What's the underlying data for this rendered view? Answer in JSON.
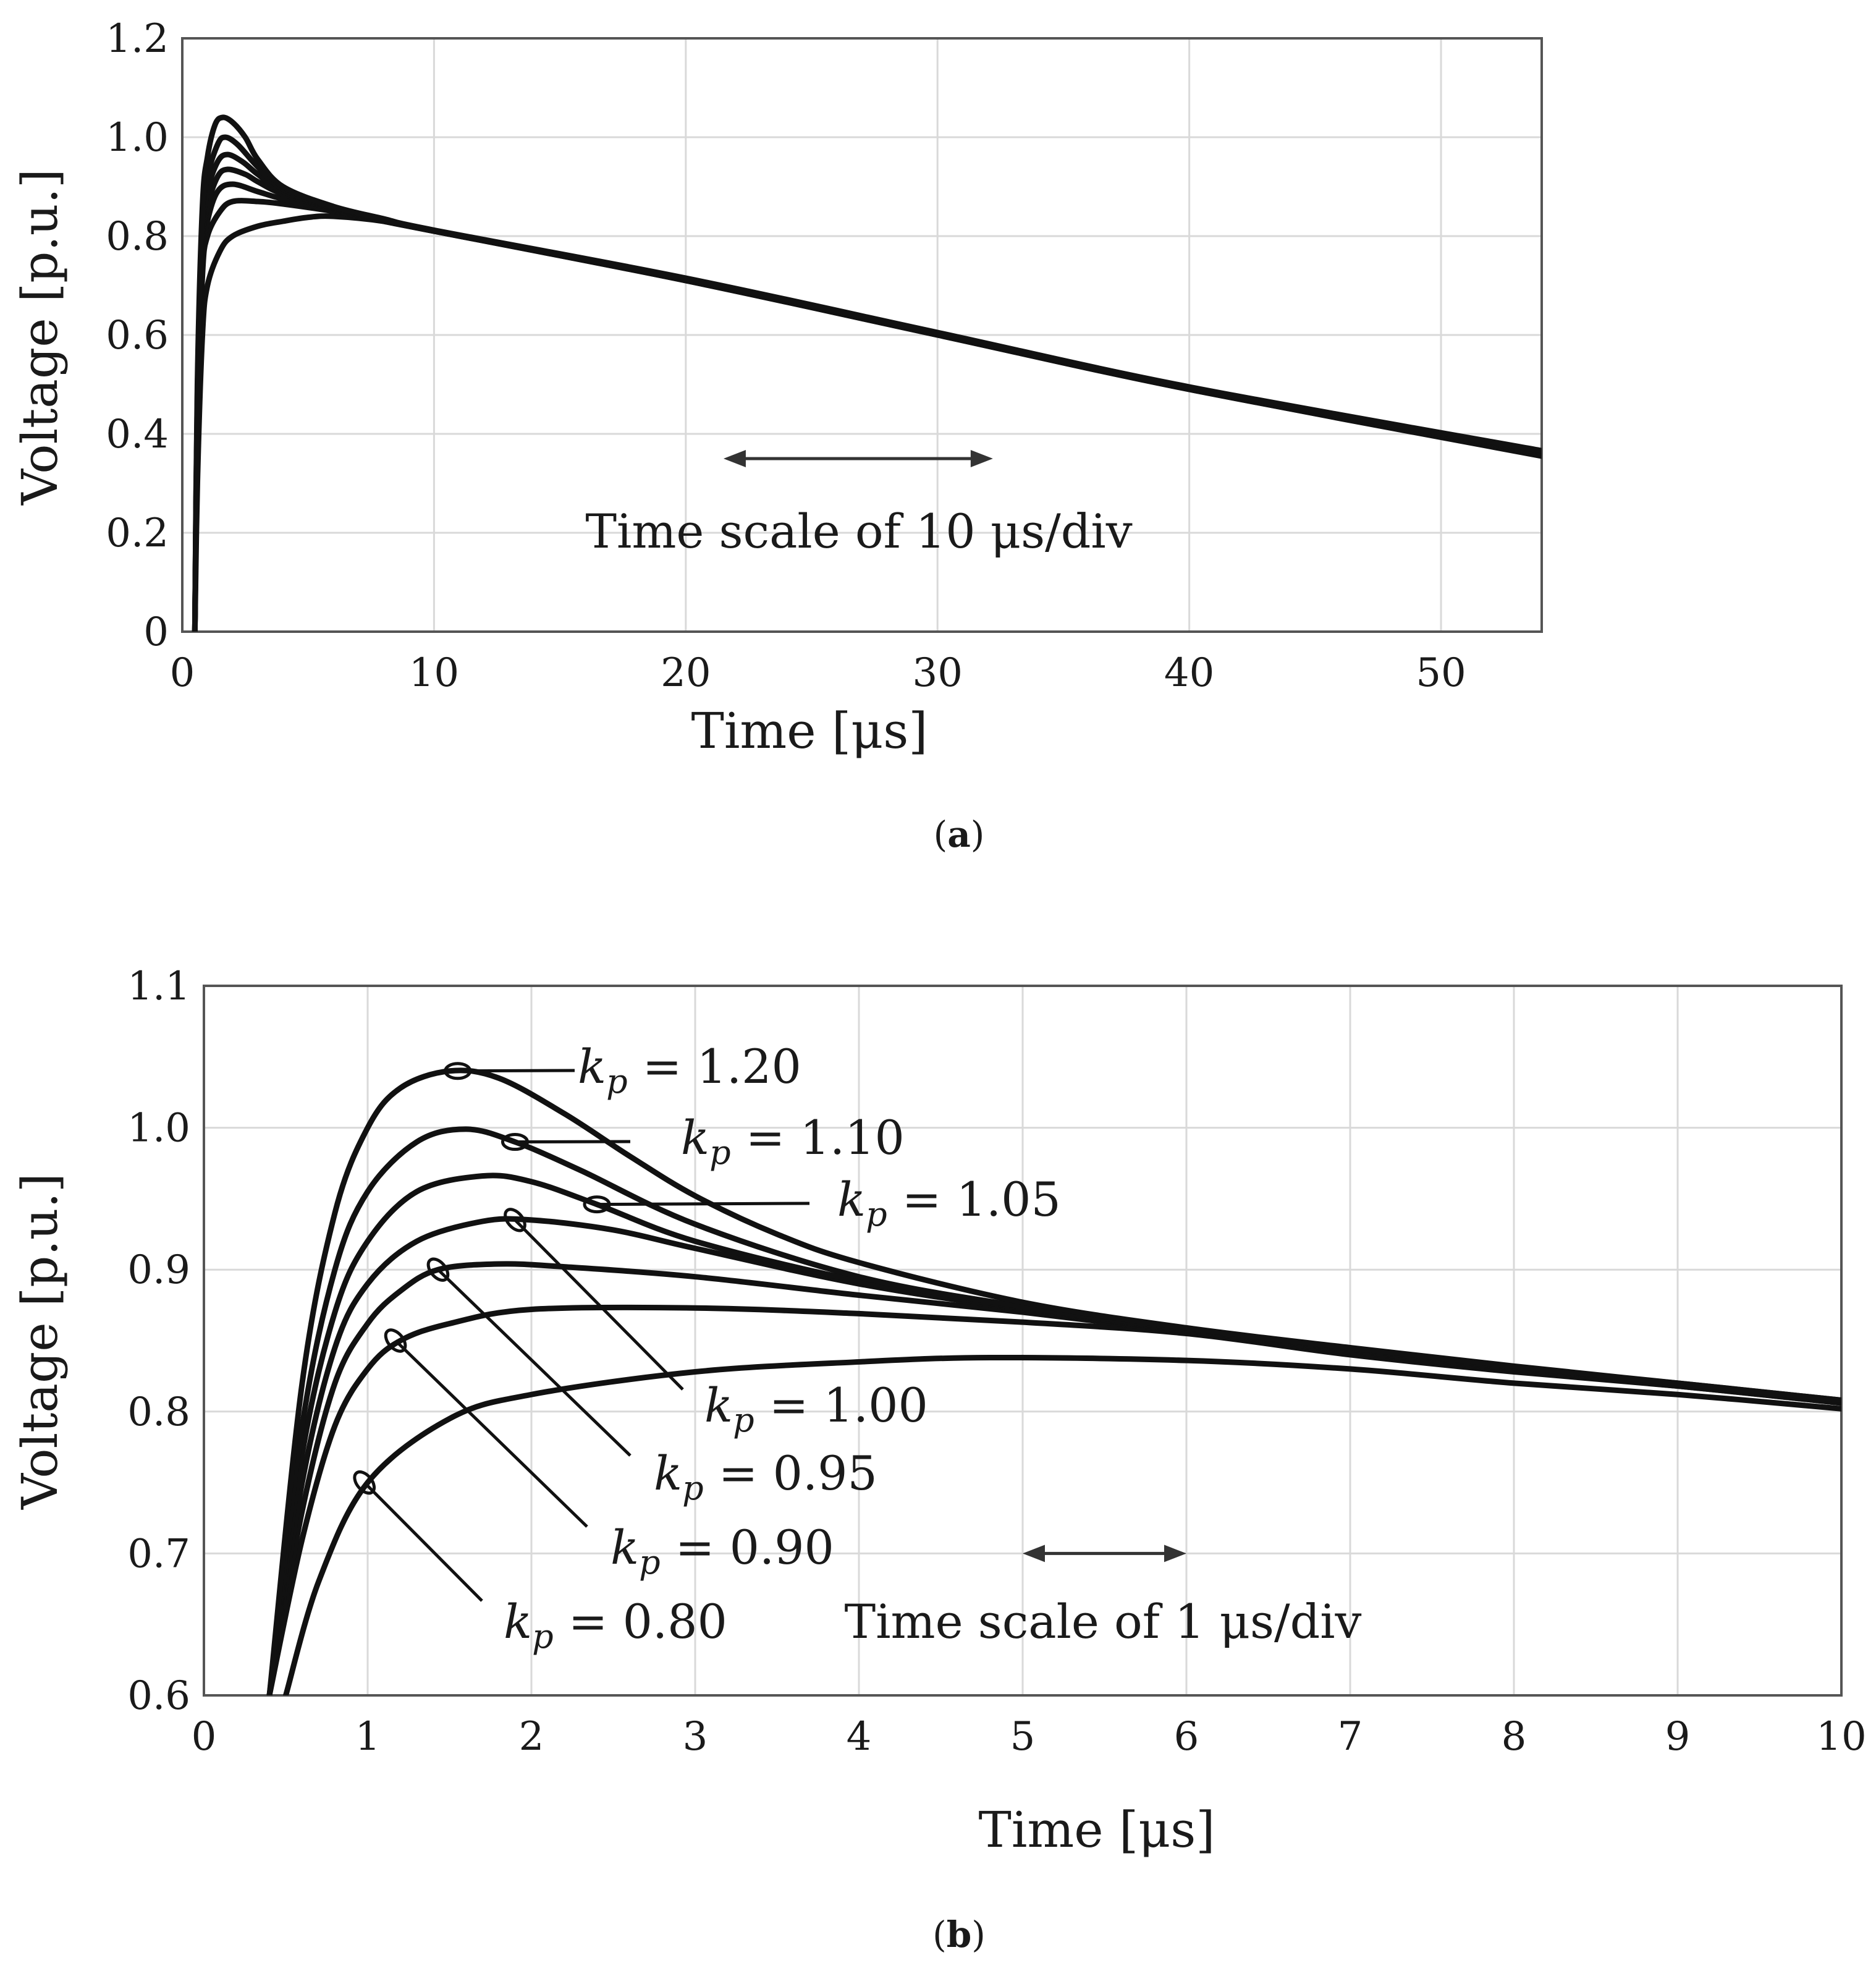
{
  "chart_data": [
    {
      "id": "a",
      "type": "line",
      "caption_label": "a",
      "xlabel": "Time [μs]",
      "ylabel": "Voltage [p.u.]",
      "xlim": [
        0,
        54
      ],
      "ylim": [
        0,
        1.2
      ],
      "xticks": [
        "0",
        "10",
        "20",
        "30",
        "40",
        "50"
      ],
      "xtick_values": [
        0,
        10,
        20,
        30,
        40,
        50
      ],
      "yticks": [
        "0",
        "0.2",
        "0.4",
        "0.6",
        "0.8",
        "1.0",
        "1.2"
      ],
      "ytick_values": [
        0,
        0.2,
        0.4,
        0.6,
        0.8,
        1.0,
        1.2
      ],
      "grid": true,
      "scale_annotation": {
        "text": "Time scale of 10 μs/div",
        "x_from": 21.5,
        "x_to": 32.2,
        "y": 0.35
      },
      "series": [
        {
          "name": "kp = 0.80",
          "kp": 0.8,
          "points": [
            [
              0.5,
              0
            ],
            [
              0.6,
              0.3
            ],
            [
              0.8,
              0.6
            ],
            [
              1,
              0.7
            ],
            [
              1.5,
              0.77
            ],
            [
              2,
              0.8
            ],
            [
              3,
              0.82
            ],
            [
              4,
              0.83
            ],
            [
              5,
              0.838
            ],
            [
              6,
              0.84
            ],
            [
              8,
              0.83
            ],
            [
              10,
              0.81
            ],
            [
              20,
              0.71
            ],
            [
              30,
              0.6
            ],
            [
              40,
              0.49
            ],
            [
              54,
              0.355
            ]
          ]
        },
        {
          "name": "kp = 0.90",
          "kp": 0.9,
          "points": [
            [
              0.5,
              0
            ],
            [
              0.6,
              0.4
            ],
            [
              0.8,
              0.72
            ],
            [
              1,
              0.8
            ],
            [
              1.5,
              0.85
            ],
            [
              2,
              0.87
            ],
            [
              3,
              0.87
            ],
            [
              4,
              0.865
            ],
            [
              6,
              0.85
            ],
            [
              8,
              0.83
            ],
            [
              10,
              0.81
            ],
            [
              20,
              0.71
            ],
            [
              30,
              0.6
            ],
            [
              40,
              0.49
            ],
            [
              54,
              0.356
            ]
          ]
        },
        {
          "name": "kp = 0.95",
          "kp": 0.95,
          "points": [
            [
              0.5,
              0
            ],
            [
              0.6,
              0.42
            ],
            [
              0.8,
              0.75
            ],
            [
              1,
              0.83
            ],
            [
              1.4,
              0.89
            ],
            [
              2,
              0.905
            ],
            [
              3,
              0.89
            ],
            [
              4,
              0.875
            ],
            [
              6,
              0.852
            ],
            [
              8,
              0.83
            ],
            [
              10,
              0.81
            ],
            [
              20,
              0.711
            ],
            [
              30,
              0.601
            ],
            [
              40,
              0.491
            ],
            [
              54,
              0.358
            ]
          ]
        },
        {
          "name": "kp = 1.00",
          "kp": 1.0,
          "points": [
            [
              0.5,
              0
            ],
            [
              0.6,
              0.44
            ],
            [
              0.8,
              0.78
            ],
            [
              1,
              0.86
            ],
            [
              1.4,
              0.92
            ],
            [
              1.8,
              0.935
            ],
            [
              2.5,
              0.925
            ],
            [
              3,
              0.91
            ],
            [
              4,
              0.885
            ],
            [
              6,
              0.855
            ],
            [
              8,
              0.832
            ],
            [
              10,
              0.81
            ],
            [
              20,
              0.712
            ],
            [
              30,
              0.602
            ],
            [
              40,
              0.492
            ],
            [
              54,
              0.36
            ]
          ]
        },
        {
          "name": "kp = 1.05",
          "kp": 1.05,
          "points": [
            [
              0.5,
              0
            ],
            [
              0.6,
              0.46
            ],
            [
              0.8,
              0.8
            ],
            [
              1,
              0.89
            ],
            [
              1.4,
              0.95
            ],
            [
              1.8,
              0.965
            ],
            [
              2.4,
              0.95
            ],
            [
              3,
              0.925
            ],
            [
              4,
              0.89
            ],
            [
              6,
              0.857
            ],
            [
              8,
              0.833
            ],
            [
              10,
              0.811
            ],
            [
              20,
              0.713
            ],
            [
              30,
              0.603
            ],
            [
              40,
              0.493
            ],
            [
              54,
              0.362
            ]
          ]
        },
        {
          "name": "kp = 1.10",
          "kp": 1.1,
          "points": [
            [
              0.5,
              0
            ],
            [
              0.6,
              0.48
            ],
            [
              0.8,
              0.83
            ],
            [
              1,
              0.92
            ],
            [
              1.4,
              0.985
            ],
            [
              1.7,
              1.0
            ],
            [
              2.2,
              0.985
            ],
            [
              3,
              0.94
            ],
            [
              4,
              0.895
            ],
            [
              6,
              0.858
            ],
            [
              8,
              0.834
            ],
            [
              10,
              0.811
            ],
            [
              20,
              0.714
            ],
            [
              30,
              0.604
            ],
            [
              40,
              0.494
            ],
            [
              54,
              0.364
            ]
          ]
        },
        {
          "name": "kp = 1.20",
          "kp": 1.2,
          "points": [
            [
              0.5,
              0
            ],
            [
              0.6,
              0.5
            ],
            [
              0.8,
              0.86
            ],
            [
              1,
              0.96
            ],
            [
              1.3,
              1.025
            ],
            [
              1.6,
              1.04
            ],
            [
              2,
              1.03
            ],
            [
              2.5,
              1.0
            ],
            [
              3,
              0.955
            ],
            [
              4,
              0.9
            ],
            [
              6,
              0.86
            ],
            [
              8,
              0.835
            ],
            [
              10,
              0.812
            ],
            [
              20,
              0.715
            ],
            [
              30,
              0.605
            ],
            [
              40,
              0.495
            ],
            [
              54,
              0.366
            ]
          ]
        }
      ]
    },
    {
      "id": "b",
      "type": "line",
      "caption_label": "b",
      "xlabel": "Time [μs]",
      "ylabel": "Voltage [p.u.]",
      "xlim": [
        0,
        10
      ],
      "ylim": [
        0.6,
        1.1
      ],
      "xticks": [
        "0",
        "1",
        "2",
        "3",
        "4",
        "5",
        "6",
        "7",
        "8",
        "9",
        "10"
      ],
      "xtick_values": [
        0,
        1,
        2,
        3,
        4,
        5,
        6,
        7,
        8,
        9,
        10
      ],
      "yticks": [
        "0.6",
        "0.7",
        "0.8",
        "0.9",
        "1.0",
        "1.1"
      ],
      "ytick_values": [
        0.6,
        0.7,
        0.8,
        0.9,
        1.0,
        1.1
      ],
      "grid": true,
      "scale_annotation": {
        "text": "Time scale of 1 μs/div",
        "x_from": 5,
        "x_to": 6,
        "y": 0.7
      },
      "series": [
        {
          "name": "kp = 0.80",
          "kp": 0.8,
          "label": {
            "sym": "k",
            "sub": "p",
            "rest": " = 0.80"
          },
          "marker": [
            0.98,
            0.75
          ],
          "points": [
            [
              0.5,
              0.6
            ],
            [
              0.7,
              0.68
            ],
            [
              1,
              0.75
            ],
            [
              1.5,
              0.795
            ],
            [
              2,
              0.812
            ],
            [
              3,
              0.828
            ],
            [
              4,
              0.835
            ],
            [
              4.8,
              0.838
            ],
            [
              6,
              0.836
            ],
            [
              7,
              0.83
            ],
            [
              8,
              0.82
            ],
            [
              9,
              0.812
            ],
            [
              10,
              0.802
            ]
          ]
        },
        {
          "name": "kp = 0.90",
          "kp": 0.9,
          "label": {
            "sym": "k",
            "sub": "p",
            "rest": " = 0.90"
          },
          "marker": [
            1.17,
            0.85
          ],
          "points": [
            [
              0.4,
              0.6
            ],
            [
              0.6,
              0.71
            ],
            [
              0.8,
              0.79
            ],
            [
              1,
              0.83
            ],
            [
              1.2,
              0.85
            ],
            [
              1.5,
              0.862
            ],
            [
              2,
              0.872
            ],
            [
              3,
              0.873
            ],
            [
              4,
              0.869
            ],
            [
              5,
              0.863
            ],
            [
              6,
              0.855
            ],
            [
              7,
              0.84
            ],
            [
              8,
              0.828
            ],
            [
              9,
              0.818
            ],
            [
              10,
              0.806
            ]
          ]
        },
        {
          "name": "kp = 0.95",
          "kp": 0.95,
          "label": {
            "sym": "k",
            "sub": "p",
            "rest": " = 0.95"
          },
          "marker": [
            1.43,
            0.9
          ],
          "points": [
            [
              0.4,
              0.6
            ],
            [
              0.6,
              0.73
            ],
            [
              0.8,
              0.82
            ],
            [
              1,
              0.862
            ],
            [
              1.2,
              0.885
            ],
            [
              1.43,
              0.9
            ],
            [
              1.8,
              0.904
            ],
            [
              2.2,
              0.902
            ],
            [
              3,
              0.895
            ],
            [
              4,
              0.882
            ],
            [
              5,
              0.87
            ],
            [
              6,
              0.856
            ],
            [
              7,
              0.842
            ],
            [
              8,
              0.829
            ],
            [
              9,
              0.818
            ],
            [
              10,
              0.806
            ]
          ]
        },
        {
          "name": "kp = 1.00",
          "kp": 1.0,
          "label": {
            "sym": "k",
            "sub": "p",
            "rest": " = 1.00"
          },
          "marker": [
            1.9,
            0.935
          ],
          "points": [
            [
              0.4,
              0.6
            ],
            [
              0.6,
              0.75
            ],
            [
              0.8,
              0.845
            ],
            [
              1,
              0.89
            ],
            [
              1.3,
              0.92
            ],
            [
              1.7,
              0.934
            ],
            [
              2,
              0.935
            ],
            [
              2.5,
              0.928
            ],
            [
              3,
              0.915
            ],
            [
              4,
              0.89
            ],
            [
              5,
              0.872
            ],
            [
              6,
              0.857
            ],
            [
              7,
              0.843
            ],
            [
              8,
              0.83
            ],
            [
              9,
              0.819
            ],
            [
              10,
              0.807
            ]
          ]
        },
        {
          "name": "kp = 1.05",
          "kp": 1.05,
          "label": {
            "sym": "k",
            "sub": "p",
            "rest": " = 1.05"
          },
          "marker": [
            2.4,
            0.946
          ],
          "points": [
            [
              0.4,
              0.6
            ],
            [
              0.6,
              0.77
            ],
            [
              0.8,
              0.87
            ],
            [
              1,
              0.92
            ],
            [
              1.3,
              0.955
            ],
            [
              1.7,
              0.966
            ],
            [
              2,
              0.962
            ],
            [
              2.4,
              0.946
            ],
            [
              3,
              0.92
            ],
            [
              4,
              0.892
            ],
            [
              5,
              0.873
            ],
            [
              6,
              0.857
            ],
            [
              7,
              0.843
            ],
            [
              8,
              0.83
            ],
            [
              9,
              0.819
            ],
            [
              10,
              0.807
            ]
          ]
        },
        {
          "name": "kp = 1.10",
          "kp": 1.1,
          "label": {
            "sym": "k",
            "sub": "p",
            "rest": " = 1.10"
          },
          "marker": [
            1.9,
            0.99
          ],
          "points": [
            [
              0.4,
              0.6
            ],
            [
              0.6,
              0.79
            ],
            [
              0.8,
              0.9
            ],
            [
              1,
              0.955
            ],
            [
              1.3,
              0.99
            ],
            [
              1.6,
              0.999
            ],
            [
              1.9,
              0.99
            ],
            [
              2.3,
              0.97
            ],
            [
              3,
              0.932
            ],
            [
              4,
              0.895
            ],
            [
              5,
              0.874
            ],
            [
              6,
              0.858
            ],
            [
              7,
              0.844
            ],
            [
              8,
              0.831
            ],
            [
              9,
              0.82
            ],
            [
              10,
              0.808
            ]
          ]
        },
        {
          "name": "kp = 1.20",
          "kp": 1.2,
          "label": {
            "sym": "k",
            "sub": "p",
            "rest": " = 1.20"
          },
          "marker": [
            1.55,
            1.04
          ],
          "points": [
            [
              0.4,
              0.6
            ],
            [
              0.6,
              0.82
            ],
            [
              0.8,
              0.94
            ],
            [
              1,
              1.0
            ],
            [
              1.2,
              1.028
            ],
            [
              1.5,
              1.04
            ],
            [
              1.8,
              1.035
            ],
            [
              2.2,
              1.01
            ],
            [
              2.6,
              0.98
            ],
            [
              3,
              0.952
            ],
            [
              3.5,
              0.925
            ],
            [
              4,
              0.905
            ],
            [
              5,
              0.877
            ],
            [
              6,
              0.859
            ],
            [
              7,
              0.845
            ],
            [
              8,
              0.832
            ],
            [
              9,
              0.82
            ],
            [
              10,
              0.808
            ]
          ]
        }
      ]
    }
  ]
}
